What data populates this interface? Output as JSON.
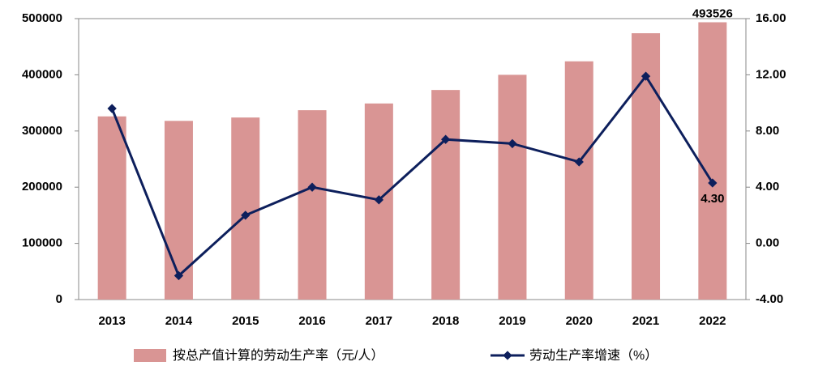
{
  "chart_data": {
    "type": "bar-line",
    "categories": [
      "2013",
      "2014",
      "2015",
      "2016",
      "2017",
      "2018",
      "2019",
      "2020",
      "2021",
      "2022"
    ],
    "series": [
      {
        "name": "按总产值计算的劳动生产率（元/人）",
        "type": "bar",
        "color": "#d99594",
        "values": [
          326000,
          318000,
          324000,
          337000,
          349000,
          373000,
          400000,
          424000,
          474000,
          493526
        ],
        "value_labels": [
          null,
          null,
          null,
          null,
          null,
          null,
          null,
          null,
          null,
          "493526"
        ]
      },
      {
        "name": "劳动生产率增速（%）",
        "type": "line",
        "axis": "y2",
        "color": "#0d1f5c",
        "values": [
          9.6,
          -2.3,
          2.0,
          4.0,
          3.1,
          7.4,
          7.1,
          5.8,
          11.9,
          4.3
        ],
        "value_labels": [
          null,
          null,
          null,
          null,
          null,
          null,
          null,
          null,
          null,
          "4.30"
        ]
      }
    ],
    "ylim": [
      0,
      500000
    ],
    "yticks": [
      0,
      100000,
      200000,
      300000,
      400000,
      500000
    ],
    "y2lim": [
      -4,
      16
    ],
    "y2ticks": [
      {
        "value": -4,
        "label": "-4.00"
      },
      {
        "value": 0,
        "label": "0.00"
      },
      {
        "value": 4,
        "label": "4.00"
      },
      {
        "value": 8,
        "label": "8.00"
      },
      {
        "value": 12,
        "label": "12.00"
      },
      {
        "value": 16,
        "label": "16.00"
      }
    ],
    "legend": "bottom"
  }
}
